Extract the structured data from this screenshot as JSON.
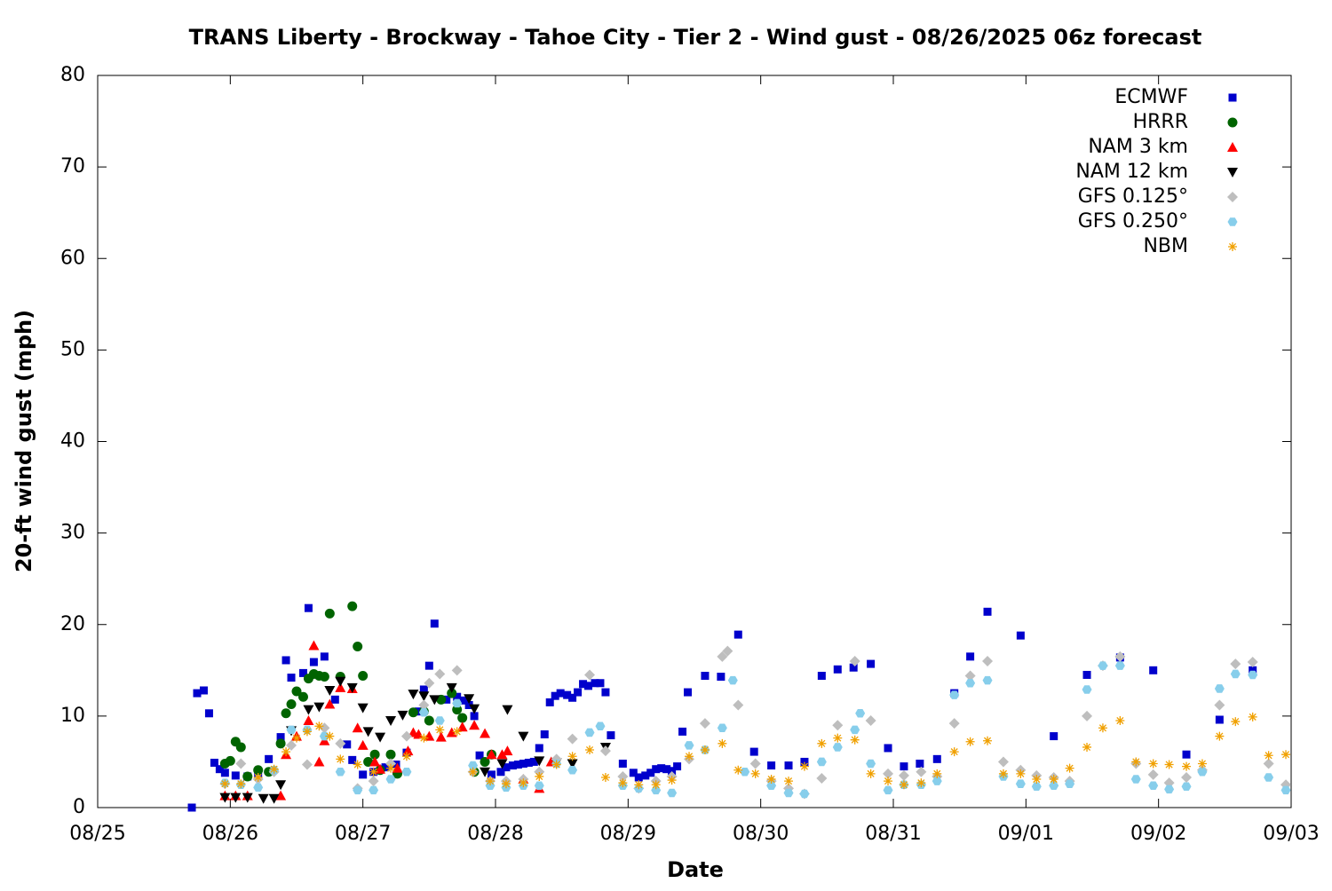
{
  "chart_data": {
    "type": "scatter",
    "title": "TRANS Liberty - Brockway - Tahoe City - Tier 2 - Wind gust - 08/26/2025 06z forecast",
    "x_label": "Date",
    "y_label": "20-ft wind gust (mph)",
    "xlim": [
      0,
      9
    ],
    "xticks": [
      {
        "value": 0,
        "label": "08/25"
      },
      {
        "value": 1,
        "label": "08/26"
      },
      {
        "value": 2,
        "label": "08/27"
      },
      {
        "value": 3,
        "label": "08/28"
      },
      {
        "value": 4,
        "label": "08/29"
      },
      {
        "value": 5,
        "label": "08/30"
      },
      {
        "value": 6,
        "label": "08/31"
      },
      {
        "value": 7,
        "label": "09/01"
      },
      {
        "value": 8,
        "label": "09/02"
      },
      {
        "value": 9,
        "label": "09/03"
      }
    ],
    "ylim": [
      0,
      80
    ],
    "yticks": [
      0,
      10,
      20,
      30,
      40,
      50,
      60,
      70,
      80
    ],
    "grid": false,
    "legend_position": "top-right",
    "series": [
      {
        "name": "ECMWF",
        "color": "#0000cc",
        "marker": "square",
        "x": [
          0.71,
          0.75,
          0.8,
          0.84,
          0.88,
          0.92,
          0.96,
          1.04,
          1.13,
          1.21,
          1.29,
          1.38,
          1.42,
          1.46,
          1.55,
          1.59,
          1.63,
          1.71,
          1.79,
          1.88,
          1.92,
          2.0,
          2.08,
          2.17,
          2.25,
          2.33,
          2.42,
          2.46,
          2.5,
          2.54,
          2.63,
          2.71,
          2.76,
          2.8,
          2.84,
          2.88,
          2.97,
          3.04,
          3.08,
          3.13,
          3.17,
          3.21,
          3.25,
          3.29,
          3.33,
          3.37,
          3.41,
          3.45,
          3.49,
          3.54,
          3.58,
          3.62,
          3.66,
          3.7,
          3.75,
          3.79,
          3.83,
          3.87,
          3.96,
          4.04,
          4.08,
          4.13,
          4.17,
          4.21,
          4.25,
          4.29,
          4.33,
          4.37,
          4.41,
          4.45,
          4.58,
          4.7,
          4.83,
          4.95,
          5.08,
          5.21,
          5.33,
          5.46,
          5.58,
          5.7,
          5.83,
          5.96,
          6.08,
          6.2,
          6.33,
          6.46,
          6.58,
          6.71,
          6.96,
          7.21,
          7.46,
          7.71,
          7.96,
          8.21,
          8.46,
          8.71
        ],
        "values": [
          0,
          12.5,
          12.8,
          10.3,
          4.9,
          4.2,
          3.8,
          3.5,
          3.4,
          3.7,
          5.3,
          7.7,
          16.1,
          14.2,
          14.7,
          21.8,
          15.9,
          16.5,
          11.8,
          6.9,
          5.2,
          3.6,
          3.9,
          4.4,
          4.7,
          6.0,
          10.5,
          12.9,
          15.5,
          20.1,
          11.8,
          12.1,
          11.7,
          11.2,
          10.0,
          5.7,
          3.6,
          3.9,
          4.4,
          4.6,
          4.7,
          4.8,
          4.9,
          5.0,
          6.5,
          8.0,
          11.5,
          12.2,
          12.5,
          12.3,
          12.0,
          12.6,
          13.5,
          13.3,
          13.6,
          13.6,
          12.6,
          7.9,
          4.8,
          3.8,
          3.3,
          3.5,
          3.8,
          4.2,
          4.3,
          4.2,
          4.0,
          4.5,
          8.3,
          12.6,
          14.4,
          14.3,
          18.9,
          6.1,
          4.6,
          4.6,
          5.0,
          14.4,
          15.1,
          15.3,
          15.7,
          6.5,
          4.5,
          4.8,
          5.3,
          12.5,
          16.5,
          21.4,
          18.8,
          7.8,
          14.5,
          16.4,
          15.0,
          5.8,
          9.6,
          15.0
        ]
      },
      {
        "name": "HRRR",
        "color": "#006400",
        "marker": "circle",
        "x": [
          0.96,
          1.0,
          1.04,
          1.08,
          1.13,
          1.21,
          1.29,
          1.38,
          1.42,
          1.46,
          1.5,
          1.55,
          1.59,
          1.63,
          1.67,
          1.71,
          1.75,
          1.83,
          1.92,
          1.96,
          2.0,
          2.04,
          2.09,
          2.13,
          2.21,
          2.26,
          2.38,
          2.46,
          2.5,
          2.59,
          2.67,
          2.71,
          2.75,
          2.84,
          2.92,
          2.97
        ],
        "values": [
          4.8,
          5.1,
          7.2,
          6.6,
          3.4,
          4.1,
          3.9,
          7.0,
          10.3,
          11.3,
          12.7,
          12.1,
          14.1,
          14.6,
          14.4,
          14.3,
          21.2,
          14.3,
          22.0,
          17.6,
          14.4,
          5.0,
          5.8,
          4.1,
          5.8,
          3.7,
          10.4,
          10.5,
          9.5,
          11.8,
          12.5,
          10.7,
          9.8,
          3.9,
          5.0,
          5.8
        ]
      },
      {
        "name": "NAM 3 km",
        "color": "#ff0000",
        "marker": "triangle-up",
        "x": [
          0.96,
          1.04,
          1.13,
          1.38,
          1.42,
          1.5,
          1.59,
          1.63,
          1.67,
          1.71,
          1.75,
          1.83,
          1.92,
          1.96,
          2.0,
          2.09,
          2.13,
          2.26,
          2.34,
          2.38,
          2.42,
          2.5,
          2.59,
          2.67,
          2.75,
          2.84,
          2.92,
          2.97,
          3.05,
          3.09,
          3.21,
          3.33,
          3.42
        ],
        "values": [
          1.3,
          1.3,
          1.3,
          1.3,
          5.8,
          7.8,
          9.5,
          17.7,
          5.0,
          7.3,
          11.3,
          13.1,
          13.0,
          8.7,
          6.8,
          5.0,
          4.2,
          4.3,
          6.2,
          8.2,
          8.0,
          7.8,
          7.7,
          8.2,
          8.8,
          9.0,
          8.1,
          5.8,
          5.8,
          6.2,
          3.1,
          2.1,
          5.0
        ]
      },
      {
        "name": "NAM 12 km",
        "color": "#000000",
        "marker": "triangle-down",
        "x": [
          0.96,
          1.04,
          1.13,
          1.25,
          1.33,
          1.38,
          1.46,
          1.59,
          1.67,
          1.75,
          1.83,
          1.92,
          2.0,
          2.04,
          2.13,
          2.21,
          2.3,
          2.38,
          2.46,
          2.54,
          2.67,
          2.8,
          2.84,
          2.92,
          3.05,
          3.09,
          3.21,
          3.33,
          3.46,
          3.58,
          3.83
        ],
        "values": [
          1.1,
          1.1,
          1.1,
          1.0,
          1.0,
          2.5,
          8.4,
          10.7,
          11.0,
          12.8,
          13.8,
          13.1,
          10.9,
          8.3,
          7.7,
          9.5,
          10.1,
          12.4,
          12.2,
          11.8,
          13.1,
          11.9,
          10.8,
          3.9,
          4.8,
          10.7,
          7.8,
          5.1,
          4.9,
          4.8,
          6.6
        ]
      },
      {
        "name": "GFS 0.125°",
        "color": "#bebebe",
        "marker": "diamond",
        "x": [
          0.96,
          1.08,
          1.21,
          1.33,
          1.46,
          1.58,
          1.71,
          1.83,
          1.96,
          2.08,
          2.21,
          2.33,
          2.46,
          2.5,
          2.58,
          2.71,
          2.83,
          2.96,
          3.08,
          3.21,
          3.33,
          3.46,
          3.58,
          3.71,
          3.83,
          3.96,
          4.08,
          4.21,
          4.33,
          4.46,
          4.58,
          4.71,
          4.75,
          4.83,
          4.96,
          5.08,
          5.21,
          5.33,
          5.46,
          5.58,
          5.71,
          5.83,
          5.96,
          6.08,
          6.21,
          6.33,
          6.46,
          6.58,
          6.71,
          6.83,
          6.96,
          7.08,
          7.21,
          7.33,
          7.46,
          7.58,
          7.71,
          7.83,
          7.96,
          8.08,
          8.21,
          8.33,
          8.46,
          8.58,
          8.71,
          8.83,
          8.96
        ],
        "values": [
          2.6,
          4.8,
          3.1,
          3.9,
          6.8,
          4.7,
          8.7,
          7.0,
          2.1,
          2.9,
          4.8,
          7.8,
          11.2,
          13.6,
          14.6,
          15.0,
          3.9,
          2.9,
          2.9,
          3.1,
          3.9,
          5.3,
          7.5,
          14.5,
          6.2,
          3.4,
          2.1,
          2.9,
          3.4,
          5.3,
          9.2,
          16.5,
          17.1,
          11.2,
          4.8,
          2.9,
          2.1,
          1.5,
          3.2,
          9.0,
          16.0,
          9.5,
          3.7,
          3.5,
          3.9,
          3.4,
          9.2,
          14.4,
          16.0,
          5.0,
          4.1,
          3.5,
          3.3,
          2.9,
          10.0,
          15.5,
          16.5,
          4.8,
          3.6,
          2.7,
          3.3,
          4.1,
          11.2,
          15.7,
          15.9,
          4.8,
          2.5
        ]
      },
      {
        "name": "GFS 0.250°",
        "color": "#87ceeb",
        "marker": "hexagon",
        "x": [
          0.96,
          1.08,
          1.21,
          1.33,
          1.46,
          1.58,
          1.71,
          1.83,
          1.96,
          2.08,
          2.21,
          2.33,
          2.46,
          2.58,
          2.71,
          2.83,
          2.96,
          3.08,
          3.21,
          3.33,
          3.46,
          3.58,
          3.71,
          3.79,
          3.96,
          4.08,
          4.21,
          4.33,
          4.46,
          4.58,
          4.71,
          4.79,
          4.88,
          5.08,
          5.21,
          5.33,
          5.46,
          5.58,
          5.71,
          5.75,
          5.83,
          5.96,
          6.08,
          6.21,
          6.33,
          6.46,
          6.58,
          6.71,
          6.83,
          6.96,
          7.08,
          7.21,
          7.33,
          7.46,
          7.58,
          7.71,
          7.83,
          7.96,
          8.08,
          8.21,
          8.33,
          8.46,
          8.58,
          8.71,
          8.83,
          8.96
        ],
        "values": [
          2.7,
          2.5,
          2.2,
          4.1,
          8.5,
          8.5,
          7.8,
          3.9,
          1.9,
          1.9,
          3.1,
          3.9,
          10.4,
          9.5,
          11.4,
          4.6,
          2.4,
          2.2,
          2.4,
          2.4,
          4.8,
          4.1,
          8.2,
          8.9,
          2.4,
          2.1,
          1.9,
          1.6,
          6.8,
          6.3,
          8.7,
          13.9,
          3.9,
          2.4,
          1.6,
          1.5,
          5.0,
          6.6,
          8.5,
          10.3,
          4.8,
          1.9,
          2.5,
          2.5,
          2.9,
          12.3,
          13.6,
          13.9,
          3.4,
          2.6,
          2.3,
          2.4,
          2.6,
          12.9,
          15.5,
          15.5,
          3.1,
          2.4,
          2.0,
          2.3,
          3.9,
          13.0,
          14.6,
          14.5,
          3.3,
          1.9
        ]
      },
      {
        "name": "NBM",
        "color": "#f0a000",
        "marker": "asterisk",
        "x": [
          0.96,
          1.08,
          1.21,
          1.33,
          1.42,
          1.5,
          1.58,
          1.67,
          1.75,
          1.83,
          1.96,
          2.08,
          2.21,
          2.33,
          2.46,
          2.58,
          2.71,
          2.83,
          2.96,
          3.08,
          3.21,
          3.33,
          3.46,
          3.58,
          3.71,
          3.83,
          3.96,
          4.08,
          4.21,
          4.33,
          4.46,
          4.58,
          4.71,
          4.83,
          4.96,
          5.08,
          5.21,
          5.33,
          5.46,
          5.58,
          5.71,
          5.83,
          5.96,
          6.08,
          6.21,
          6.33,
          6.46,
          6.58,
          6.71,
          6.83,
          6.96,
          7.08,
          7.21,
          7.33,
          7.46,
          7.58,
          7.71,
          7.83,
          7.96,
          8.08,
          8.21,
          8.33,
          8.46,
          8.58,
          8.71,
          8.83,
          8.96
        ],
        "values": [
          2.6,
          2.6,
          3.3,
          4.2,
          6.1,
          7.6,
          8.3,
          8.9,
          7.8,
          5.3,
          4.7,
          3.9,
          4.3,
          5.6,
          7.6,
          8.5,
          8.3,
          3.9,
          2.9,
          2.6,
          2.7,
          3.4,
          4.7,
          5.6,
          6.3,
          3.3,
          2.7,
          2.5,
          2.5,
          3.0,
          5.6,
          6.3,
          7.0,
          4.1,
          3.7,
          3.1,
          2.9,
          4.5,
          7.0,
          7.6,
          7.4,
          3.7,
          2.9,
          2.5,
          2.7,
          3.7,
          6.1,
          7.2,
          7.3,
          3.7,
          3.7,
          3.1,
          3.1,
          4.3,
          6.6,
          8.7,
          9.5,
          5.0,
          4.8,
          4.7,
          4.5,
          4.8,
          7.8,
          9.4,
          9.9,
          5.7,
          5.8
        ]
      }
    ]
  }
}
